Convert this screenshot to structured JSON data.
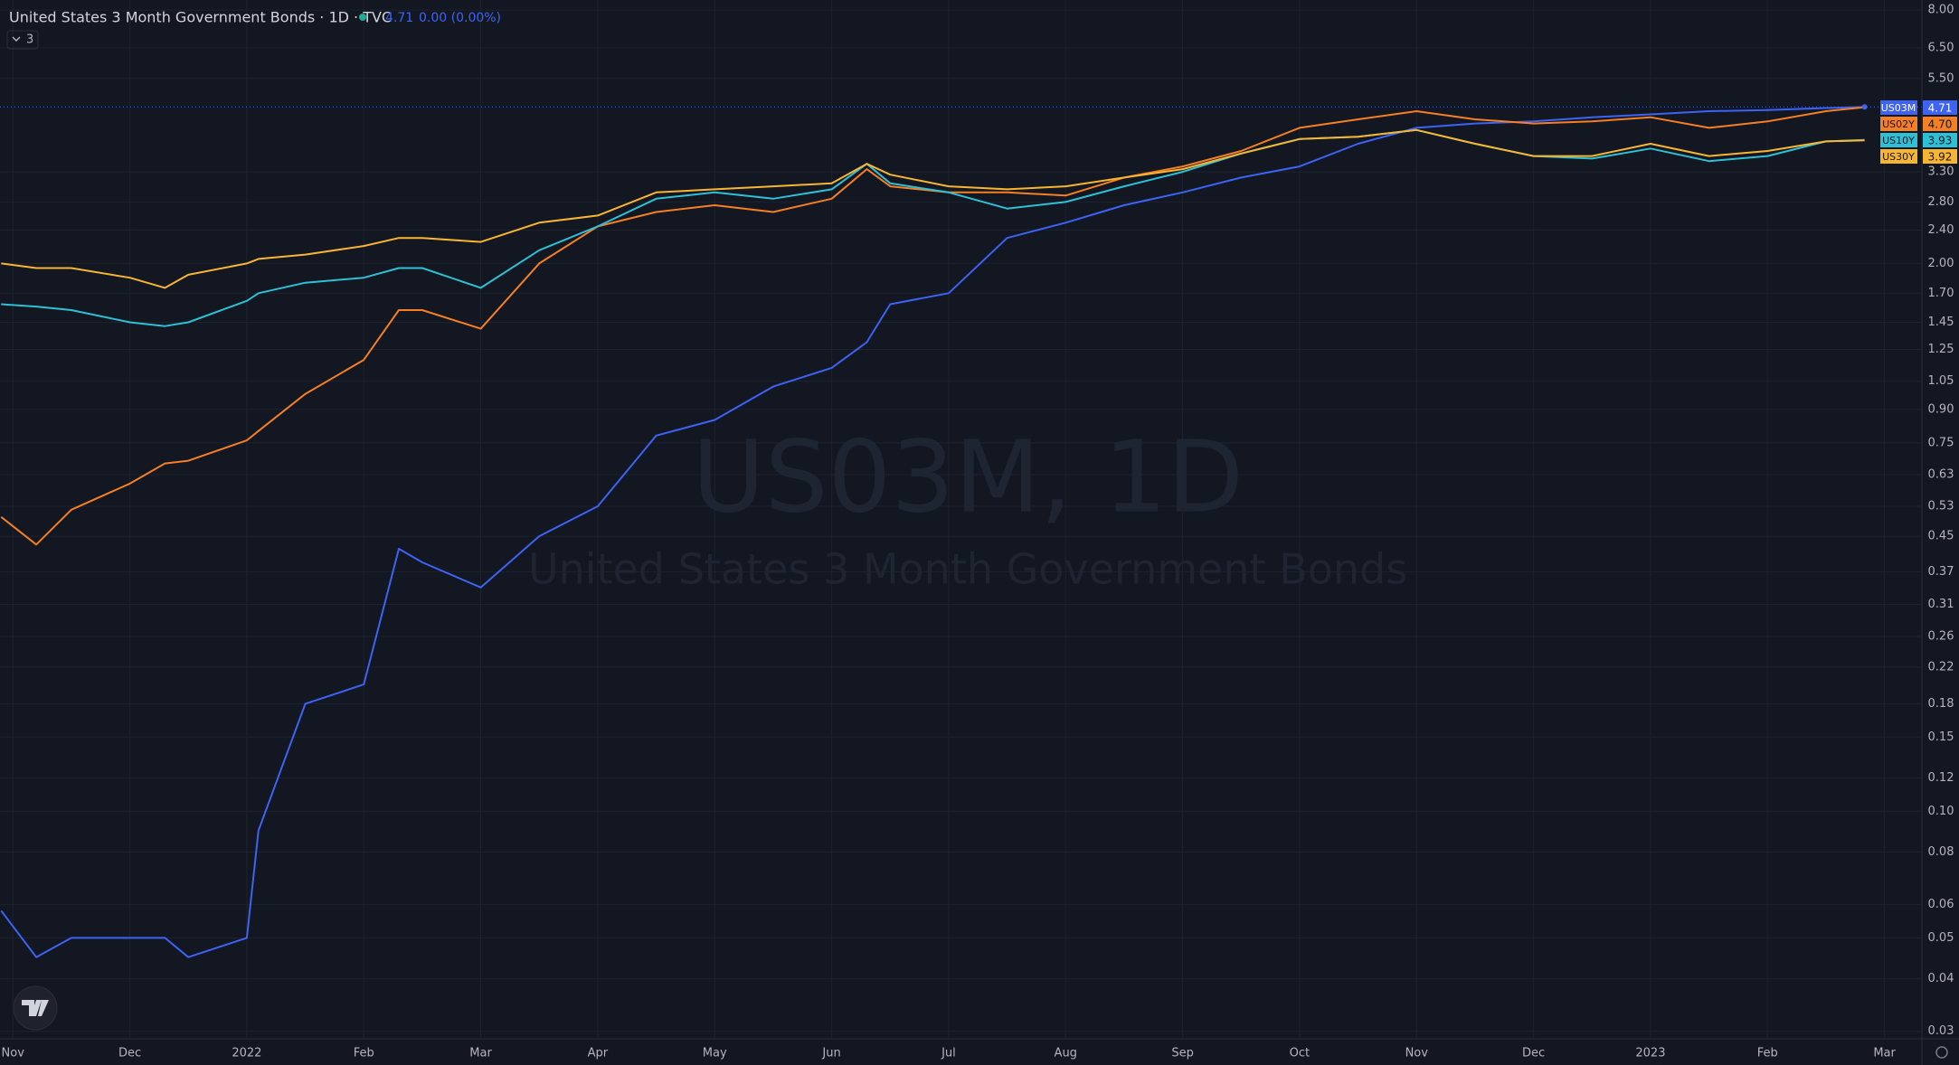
{
  "header": {
    "title": "United States 3 Month Government Bonds · 1D · TVC",
    "price": "4.71",
    "change": "0.00 (0.00%)",
    "indicators": "3"
  },
  "watermark": {
    "symbol": "US03M, 1D",
    "name": "United States 3 Month Government Bonds"
  },
  "chart_data": {
    "type": "line",
    "log_scale": true,
    "grid": true,
    "x": [
      -0.1,
      0.2,
      0.5,
      1,
      1.3,
      1.5,
      2,
      2.1,
      2.5,
      3,
      3.3,
      3.5,
      4,
      4.5,
      5,
      5.5,
      6,
      6.5,
      7,
      7.3,
      7.5,
      8,
      8.5,
      9,
      9.5,
      10,
      10.5,
      11,
      11.5,
      12,
      12.5,
      13,
      13.5,
      14,
      14.5,
      15,
      15.5,
      15.83
    ],
    "xlim": [
      -0.11,
      16.32
    ],
    "xticks": [
      {
        "value": 0,
        "label": "Nov"
      },
      {
        "value": 1,
        "label": "Dec"
      },
      {
        "value": 2,
        "label": "2022"
      },
      {
        "value": 3,
        "label": "Feb"
      },
      {
        "value": 4,
        "label": "Mar"
      },
      {
        "value": 5,
        "label": "Apr"
      },
      {
        "value": 6,
        "label": "May"
      },
      {
        "value": 7,
        "label": "Jun"
      },
      {
        "value": 8,
        "label": "Jul"
      },
      {
        "value": 9,
        "label": "Aug"
      },
      {
        "value": 10,
        "label": "Sep"
      },
      {
        "value": 11,
        "label": "Oct"
      },
      {
        "value": 12,
        "label": "Nov"
      },
      {
        "value": 13,
        "label": "Dec"
      },
      {
        "value": 14,
        "label": "2023"
      },
      {
        "value": 15,
        "label": "Feb"
      },
      {
        "value": 16,
        "label": "Mar"
      }
    ],
    "ylim": [
      0.0288,
      8.45
    ],
    "yticks": [
      {
        "value": 8,
        "label": "8.00"
      },
      {
        "value": 6.5,
        "label": "6.50"
      },
      {
        "value": 5.5,
        "label": "5.50"
      },
      {
        "value": 3.3,
        "label": "3.30"
      },
      {
        "value": 2.8,
        "label": "2.80"
      },
      {
        "value": 2.4,
        "label": "2.40"
      },
      {
        "value": 2,
        "label": "2.00"
      },
      {
        "value": 1.7,
        "label": "1.70"
      },
      1.45,
      1.25,
      1.05,
      {
        "value": 0.9,
        "label": "0.90"
      },
      0.75,
      0.63,
      0.53,
      0.45,
      0.37,
      0.31,
      0.26,
      0.22,
      0.18,
      0.15,
      0.12,
      {
        "value": 0.1,
        "label": "0.10"
      },
      0.08,
      0.06,
      0.05,
      0.04,
      0.03
    ],
    "series": [
      {
        "name": "US03M",
        "color": "#3d63f5",
        "values": [
          0.058,
          0.045,
          0.05,
          0.05,
          0.05,
          0.045,
          0.05,
          0.09,
          0.18,
          0.2,
          0.42,
          0.39,
          0.34,
          0.45,
          0.53,
          0.78,
          0.85,
          1.02,
          1.13,
          1.3,
          1.6,
          1.7,
          2.3,
          2.5,
          2.75,
          2.95,
          3.2,
          3.4,
          3.85,
          4.2,
          4.3,
          4.35,
          4.45,
          4.52,
          4.6,
          4.63,
          4.68,
          4.71
        ],
        "value_labels": [
          null,
          null,
          null,
          null,
          null,
          null,
          null,
          null,
          null,
          null,
          null,
          null,
          null,
          null,
          null,
          null,
          null,
          null,
          null,
          null,
          null,
          null,
          null,
          null,
          null,
          null,
          null,
          null,
          null,
          null,
          null,
          null,
          null,
          null,
          null,
          null,
          null,
          "4.71"
        ]
      },
      {
        "name": "US02Y",
        "color": "#f57f22",
        "values": [
          0.5,
          0.43,
          0.52,
          0.6,
          0.67,
          0.68,
          0.76,
          0.8,
          0.98,
          1.18,
          1.55,
          1.55,
          1.4,
          2.0,
          2.45,
          2.65,
          2.75,
          2.65,
          2.85,
          3.35,
          3.05,
          2.95,
          2.95,
          2.9,
          3.2,
          3.4,
          3.7,
          4.2,
          4.4,
          4.6,
          4.4,
          4.3,
          4.35,
          4.45,
          4.2,
          4.35,
          4.6,
          4.7
        ],
        "value_labels": [
          null,
          null,
          null,
          null,
          null,
          null,
          null,
          null,
          null,
          null,
          null,
          null,
          null,
          null,
          null,
          null,
          null,
          null,
          null,
          null,
          null,
          null,
          null,
          null,
          null,
          null,
          null,
          null,
          null,
          null,
          null,
          null,
          null,
          null,
          null,
          null,
          null,
          "4.70"
        ]
      },
      {
        "name": "US10Y",
        "color": "#2ec0d5",
        "values": [
          1.6,
          1.58,
          1.55,
          1.45,
          1.42,
          1.45,
          1.63,
          1.7,
          1.8,
          1.85,
          1.95,
          1.95,
          1.75,
          2.15,
          2.45,
          2.85,
          2.95,
          2.85,
          3.0,
          3.45,
          3.1,
          2.95,
          2.7,
          2.8,
          3.05,
          3.3,
          3.65,
          3.95,
          4.0,
          4.15,
          3.85,
          3.6,
          3.55,
          3.75,
          3.5,
          3.6,
          3.9,
          3.93
        ],
        "value_labels": [
          null,
          null,
          null,
          null,
          null,
          null,
          null,
          null,
          null,
          null,
          null,
          null,
          null,
          null,
          null,
          null,
          null,
          null,
          null,
          null,
          null,
          null,
          null,
          null,
          null,
          null,
          null,
          null,
          null,
          null,
          null,
          null,
          null,
          null,
          null,
          null,
          null,
          "3.93"
        ]
      },
      {
        "name": "US30Y",
        "color": "#f7b531",
        "values": [
          2.0,
          1.95,
          1.95,
          1.85,
          1.75,
          1.88,
          2.0,
          2.05,
          2.1,
          2.2,
          2.3,
          2.3,
          2.25,
          2.5,
          2.6,
          2.95,
          3.0,
          3.05,
          3.1,
          3.45,
          3.25,
          3.05,
          3.0,
          3.05,
          3.2,
          3.35,
          3.65,
          3.95,
          4.0,
          4.15,
          3.85,
          3.6,
          3.6,
          3.85,
          3.6,
          3.7,
          3.9,
          3.92
        ],
        "value_labels": [
          null,
          null,
          null,
          null,
          null,
          null,
          null,
          null,
          null,
          null,
          null,
          null,
          null,
          null,
          null,
          null,
          null,
          null,
          null,
          null,
          null,
          null,
          null,
          null,
          null,
          null,
          null,
          null,
          null,
          null,
          null,
          null,
          null,
          null,
          null,
          null,
          null,
          "3.92"
        ]
      }
    ]
  }
}
